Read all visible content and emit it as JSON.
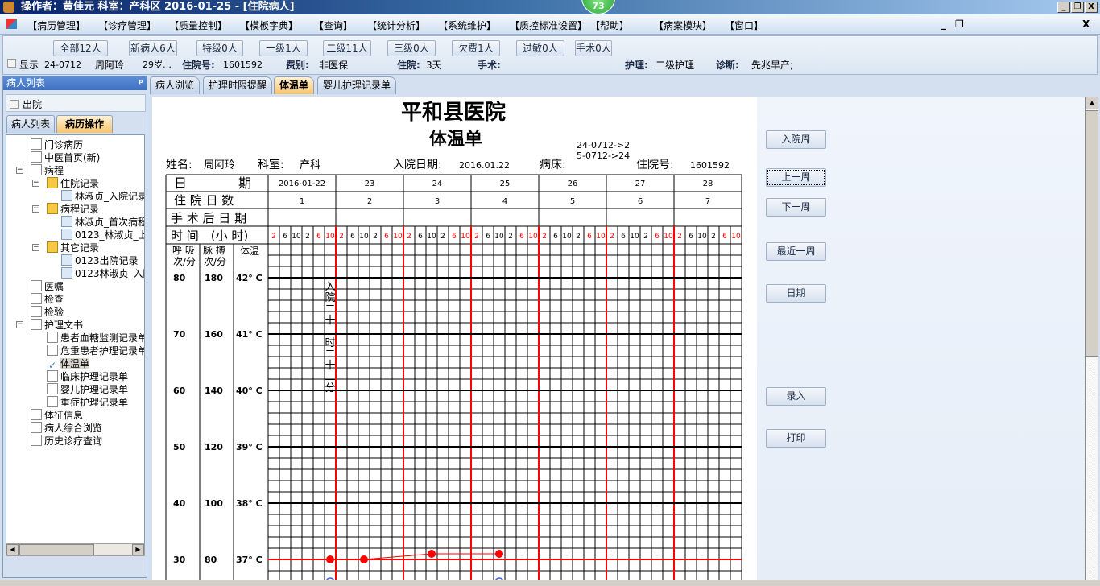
{
  "titlebar": {
    "title": "操作者：黄佳元   科室：产科区   2016-01-25 - [住院病人]",
    "badge": "73",
    "minimize": "_",
    "restore": "❐",
    "close": "X"
  },
  "menu": {
    "items": [
      "【病历管理】",
      "【诊疗管理】",
      "【质量控制】",
      "【模板字典】",
      "【查询】",
      "【统计分析】",
      "【系统维护】",
      "【质控标准设置】",
      "【帮助】",
      "【病案模块】",
      "【窗口】"
    ],
    "mdi_minimize": "_",
    "mdi_restore": "❐",
    "mdi_close": "X"
  },
  "filters": [
    "全部12人",
    "新病人6人",
    "特级0人",
    "一级1人",
    "二级11人",
    "三级0人",
    "欠费1人",
    "过敏0人",
    "手术0人"
  ],
  "patient_info": {
    "show_label": "显示",
    "bed": "24-0712",
    "name": "周阿玲",
    "age": "29岁…",
    "admission_no_label": "住院号:",
    "admission_no": "1601592",
    "fee_label": "费别:",
    "fee": "非医保",
    "stay_label": "住院:",
    "stay": "3天",
    "surgery_label": "手术:",
    "nursing_label": "护理:",
    "nursing": "二级护理",
    "diagnosis_label": "诊断:",
    "diagnosis": "先兆早产;"
  },
  "left_panel": {
    "header": "病人列表",
    "pin": "ᵖ",
    "discharged_label": "出院",
    "tabs": [
      "病人列表",
      "病历操作"
    ],
    "active_tab": 1
  },
  "tree": [
    {
      "label": "门诊病历",
      "level": 0,
      "icon": "book-icon"
    },
    {
      "label": "中医首页(新)",
      "level": 0,
      "icon": "record-icon"
    },
    {
      "label": "病程",
      "level": 0,
      "icon": "notebook-icon",
      "expanded": true
    },
    {
      "label": "住院记录",
      "level": 1,
      "icon": "folder-icon",
      "expanded": true
    },
    {
      "label": "林淑贞_入院记录",
      "level": 2,
      "icon": "document-icon"
    },
    {
      "label": "病程记录",
      "level": 1,
      "icon": "folder-icon",
      "expanded": true
    },
    {
      "label": "林淑贞_首次病程",
      "level": 2,
      "icon": "document-icon"
    },
    {
      "label": "0123_林淑贞_上级",
      "level": 2,
      "icon": "document-icon"
    },
    {
      "label": "其它记录",
      "level": 1,
      "icon": "folder-icon",
      "expanded": true
    },
    {
      "label": "0123出院记录",
      "level": 2,
      "icon": "document-icon"
    },
    {
      "label": "0123林淑贞_入院",
      "level": 2,
      "icon": "document-icon"
    },
    {
      "label": "医嘱",
      "level": 0,
      "icon": "order-icon"
    },
    {
      "label": "检查",
      "level": 0,
      "icon": "magnifier-icon"
    },
    {
      "label": "检验",
      "level": 0,
      "icon": "lab-icon"
    },
    {
      "label": "护理文书",
      "level": 0,
      "icon": "clipboard-icon",
      "expanded": true
    },
    {
      "label": "患者血糖监测记录单",
      "level": 1,
      "icon": "page-icon"
    },
    {
      "label": "危重患者护理记录单",
      "level": 1,
      "icon": "page-icon"
    },
    {
      "label": "体温单",
      "level": 1,
      "icon": "checkmark-icon",
      "selected": true
    },
    {
      "label": "临床护理记录单",
      "level": 1,
      "icon": "page-icon"
    },
    {
      "label": "婴儿护理记录单",
      "level": 1,
      "icon": "page-icon"
    },
    {
      "label": "重症护理记录单",
      "level": 1,
      "icon": "page-icon"
    },
    {
      "label": "体征信息",
      "level": 0,
      "icon": "record-icon"
    },
    {
      "label": "病人综合浏览",
      "level": 0,
      "icon": "browse-icon"
    },
    {
      "label": "历史诊疗查询",
      "level": 0,
      "icon": "history-icon"
    }
  ],
  "content_tabs": [
    "病人浏览",
    "护理时限提醒",
    "体温单",
    "婴儿护理记录单"
  ],
  "active_content_tab": 2,
  "sheet": {
    "hospital": "平和县医院",
    "title": "体温单",
    "bed_note": [
      "24-0712->2",
      "5-0712->24"
    ],
    "name_label": "姓名:",
    "name": "周阿玲",
    "dept_label": "科室:",
    "dept": "产科",
    "admit_label": "入院日期:",
    "admit_date": "2016.01.22",
    "bed_label": "病床:",
    "no_label": "住院号:",
    "no": "1601592",
    "row_labels": {
      "date": "日　　　　期",
      "days": "住 院 日 数",
      "postop": "手 术 后 日 期",
      "time": "时 间　(小 时)",
      "resp": "呼 吸 次/分",
      "pulse": "脉 搏 次/分",
      "temp": "体温"
    },
    "dates": [
      "2016-01-22",
      "23",
      "24",
      "25",
      "26",
      "27",
      "28"
    ],
    "hospital_days": [
      "1",
      "2",
      "3",
      "4",
      "5",
      "6",
      "7"
    ],
    "hours": [
      "2",
      "6",
      "10",
      "2",
      "6",
      "10"
    ],
    "hour_colors": [
      "#ff0000",
      "#000000",
      "#000000",
      "#000000",
      "#ff0000",
      "#ff0000"
    ],
    "admission_note": "入院二十二时二十二分"
  },
  "chart_data": {
    "type": "line",
    "x_slots_per_day": [
      2,
      6,
      10,
      14,
      18,
      22
    ],
    "y_axes": [
      {
        "label": "呼吸 次/分",
        "ticks": [
          80,
          70,
          60,
          50,
          40,
          30
        ]
      },
      {
        "label": "脉搏 次/分",
        "ticks": [
          180,
          160,
          140,
          120,
          100,
          80
        ]
      },
      {
        "label": "体温",
        "ticks": [
          "42° C",
          "41° C",
          "40° C",
          "39° C",
          "38° C",
          "37° C"
        ],
        "values": [
          42,
          41,
          40,
          39,
          38,
          37
        ]
      }
    ],
    "reference_line": 37,
    "series": [
      {
        "kind": "temperature",
        "color": "#ff0000",
        "points": [
          {
            "date": "2016-01-22",
            "hour": 22,
            "value": 37.0
          },
          {
            "date": "2016-01-23",
            "hour": 10,
            "value": 37.0
          },
          {
            "date": "2016-01-24",
            "hour": 10,
            "value": 37.1
          },
          {
            "date": "2016-01-25",
            "hour": 10,
            "value": 37.1
          }
        ]
      },
      {
        "kind": "pulse",
        "color": "#4060ff",
        "points": [
          {
            "date": "2016-01-22",
            "hour": 22,
            "value": 72
          },
          {
            "date": "2016-01-25",
            "hour": 10,
            "value": 72
          }
        ]
      }
    ]
  },
  "right_panel": {
    "buttons": [
      "入院周",
      "上一周",
      "下一周",
      "最近一周",
      "日期",
      "录入",
      "打印"
    ]
  }
}
